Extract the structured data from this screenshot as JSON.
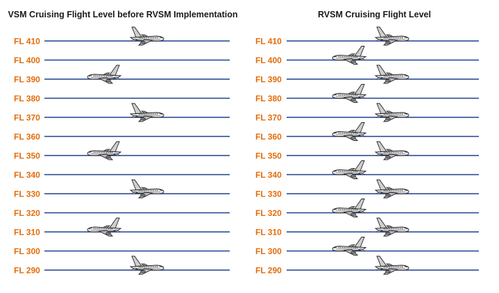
{
  "colors": {
    "label": "#e46c0a",
    "line": "#1f3f8f",
    "title": "#1a1a1a"
  },
  "left_panel": {
    "title": "VSM Cruising Flight Level before RVSM Implementation",
    "levels": [
      {
        "label": "FL 410",
        "aircraft": "east"
      },
      {
        "label": "FL 400",
        "aircraft": "none"
      },
      {
        "label": "FL 390",
        "aircraft": "west"
      },
      {
        "label": "FL 380",
        "aircraft": "none"
      },
      {
        "label": "FL 370",
        "aircraft": "east"
      },
      {
        "label": "FL 360",
        "aircraft": "none"
      },
      {
        "label": "FL 350",
        "aircraft": "west"
      },
      {
        "label": "FL 340",
        "aircraft": "none"
      },
      {
        "label": "FL 330",
        "aircraft": "east"
      },
      {
        "label": "FL 320",
        "aircraft": "none"
      },
      {
        "label": "FL 310",
        "aircraft": "west"
      },
      {
        "label": "FL 300",
        "aircraft": "none"
      },
      {
        "label": "FL 290",
        "aircraft": "east"
      }
    ]
  },
  "right_panel": {
    "title": "RVSM Cruising Flight Level",
    "levels": [
      {
        "label": "FL 410",
        "aircraft": "east"
      },
      {
        "label": "FL 400",
        "aircraft": "west"
      },
      {
        "label": "FL 390",
        "aircraft": "east"
      },
      {
        "label": "FL 380",
        "aircraft": "west"
      },
      {
        "label": "FL 370",
        "aircraft": "east"
      },
      {
        "label": "FL 360",
        "aircraft": "west"
      },
      {
        "label": "FL 350",
        "aircraft": "east"
      },
      {
        "label": "FL 340",
        "aircraft": "west"
      },
      {
        "label": "FL 330",
        "aircraft": "east"
      },
      {
        "label": "FL 320",
        "aircraft": "west"
      },
      {
        "label": "FL 310",
        "aircraft": "east"
      },
      {
        "label": "FL 300",
        "aircraft": "west"
      },
      {
        "label": "FL 290",
        "aircraft": "east"
      }
    ]
  }
}
